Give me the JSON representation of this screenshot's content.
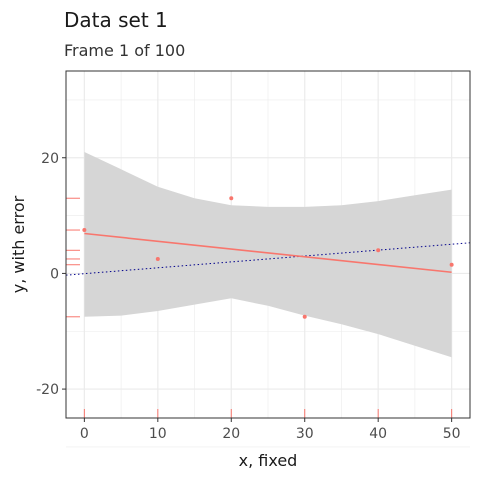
{
  "chart_data": {
    "type": "scatter",
    "title": "Data set 1",
    "subtitle": "Frame 1 of 100",
    "xlabel": "x, fixed",
    "ylabel": "y, with error",
    "xlim": [
      -2.5,
      52.5
    ],
    "ylim": [
      -25,
      35
    ],
    "x_ticks": [
      0,
      10,
      20,
      30,
      40,
      50
    ],
    "y_ticks": [
      -20,
      0,
      20
    ],
    "grid": true,
    "points": [
      {
        "x": 0,
        "y": 7.5
      },
      {
        "x": 10,
        "y": 2.5
      },
      {
        "x": 20,
        "y": 13
      },
      {
        "x": 30,
        "y": -7.5
      },
      {
        "x": 40,
        "y": 4
      },
      {
        "x": 50,
        "y": 1.5
      }
    ],
    "fit_line": {
      "x": [
        0,
        50
      ],
      "y": [
        6.9,
        0.2
      ]
    },
    "confidence_band": {
      "x": [
        0,
        5,
        10,
        15,
        20,
        25,
        30,
        35,
        40,
        45,
        50
      ],
      "upper": [
        21,
        18,
        15,
        13,
        11.8,
        11.5,
        11.5,
        11.8,
        12.5,
        13.5,
        14.5
      ],
      "lower": [
        -7.5,
        -7.3,
        -6.5,
        -5.4,
        -4.3,
        -5.6,
        -7.3,
        -8.8,
        -10.5,
        -12.5,
        -14.5
      ]
    },
    "true_line": {
      "x": [
        -2.5,
        52.5
      ],
      "y": [
        -0.3,
        5.3
      ]
    },
    "rug_x": [
      0,
      10,
      20,
      30,
      40,
      50
    ],
    "rug_y": [
      13,
      7.5,
      4,
      2.5,
      1.5,
      -7.5
    ],
    "colors": {
      "points": "#f8766d",
      "fit": "#f8766d",
      "band": "#d6d6d6",
      "true_line": "#00008b",
      "grid": "#ebebeb",
      "axis": "#333333"
    }
  }
}
